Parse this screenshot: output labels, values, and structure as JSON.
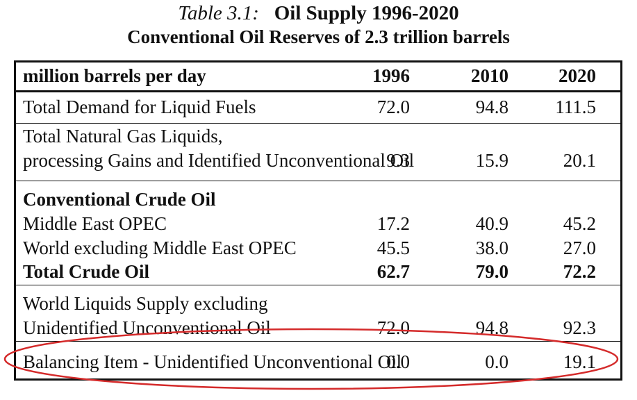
{
  "title": {
    "label": "Table 3.1:",
    "main": "Oil Supply 1996-2020",
    "subtitle": "Conventional Oil Reserves of 2.3 trillion barrels"
  },
  "table": {
    "header": {
      "label": "million barrels per day",
      "years": [
        "1996",
        "2010",
        "2020"
      ]
    },
    "total_demand": {
      "label": "Total Demand for Liquid Fuels",
      "values": [
        "72.0",
        "94.8",
        "111.5"
      ]
    },
    "ngl": {
      "label_line1": "Total Natural Gas Liquids,",
      "label_line2": "processing Gains and Identified Unconventional Oil",
      "values": [
        "9.3",
        "15.9",
        "20.1"
      ]
    },
    "conventional": {
      "heading": "Conventional Crude Oil",
      "middle_east": {
        "label": "Middle East OPEC",
        "values": [
          "17.2",
          "40.9",
          "45.2"
        ]
      },
      "world_excl": {
        "label": "World excluding Middle East OPEC",
        "values": [
          "45.5",
          "38.0",
          "27.0"
        ]
      },
      "total": {
        "label": "Total Crude Oil",
        "values": [
          "62.7",
          "79.0",
          "72.2"
        ]
      }
    },
    "world_liquids": {
      "label_line1": "World Liquids Supply excluding",
      "label_line2": "Unidentified Unconventional Oil",
      "values": [
        "72.0",
        "94.8",
        "92.3"
      ]
    },
    "balancing": {
      "label": "Balancing Item - Unidentified Unconventional Oil",
      "values": [
        "0.0",
        "0.0",
        "19.1"
      ]
    }
  },
  "annotation": {
    "ellipse_color": "#d42a2a"
  }
}
